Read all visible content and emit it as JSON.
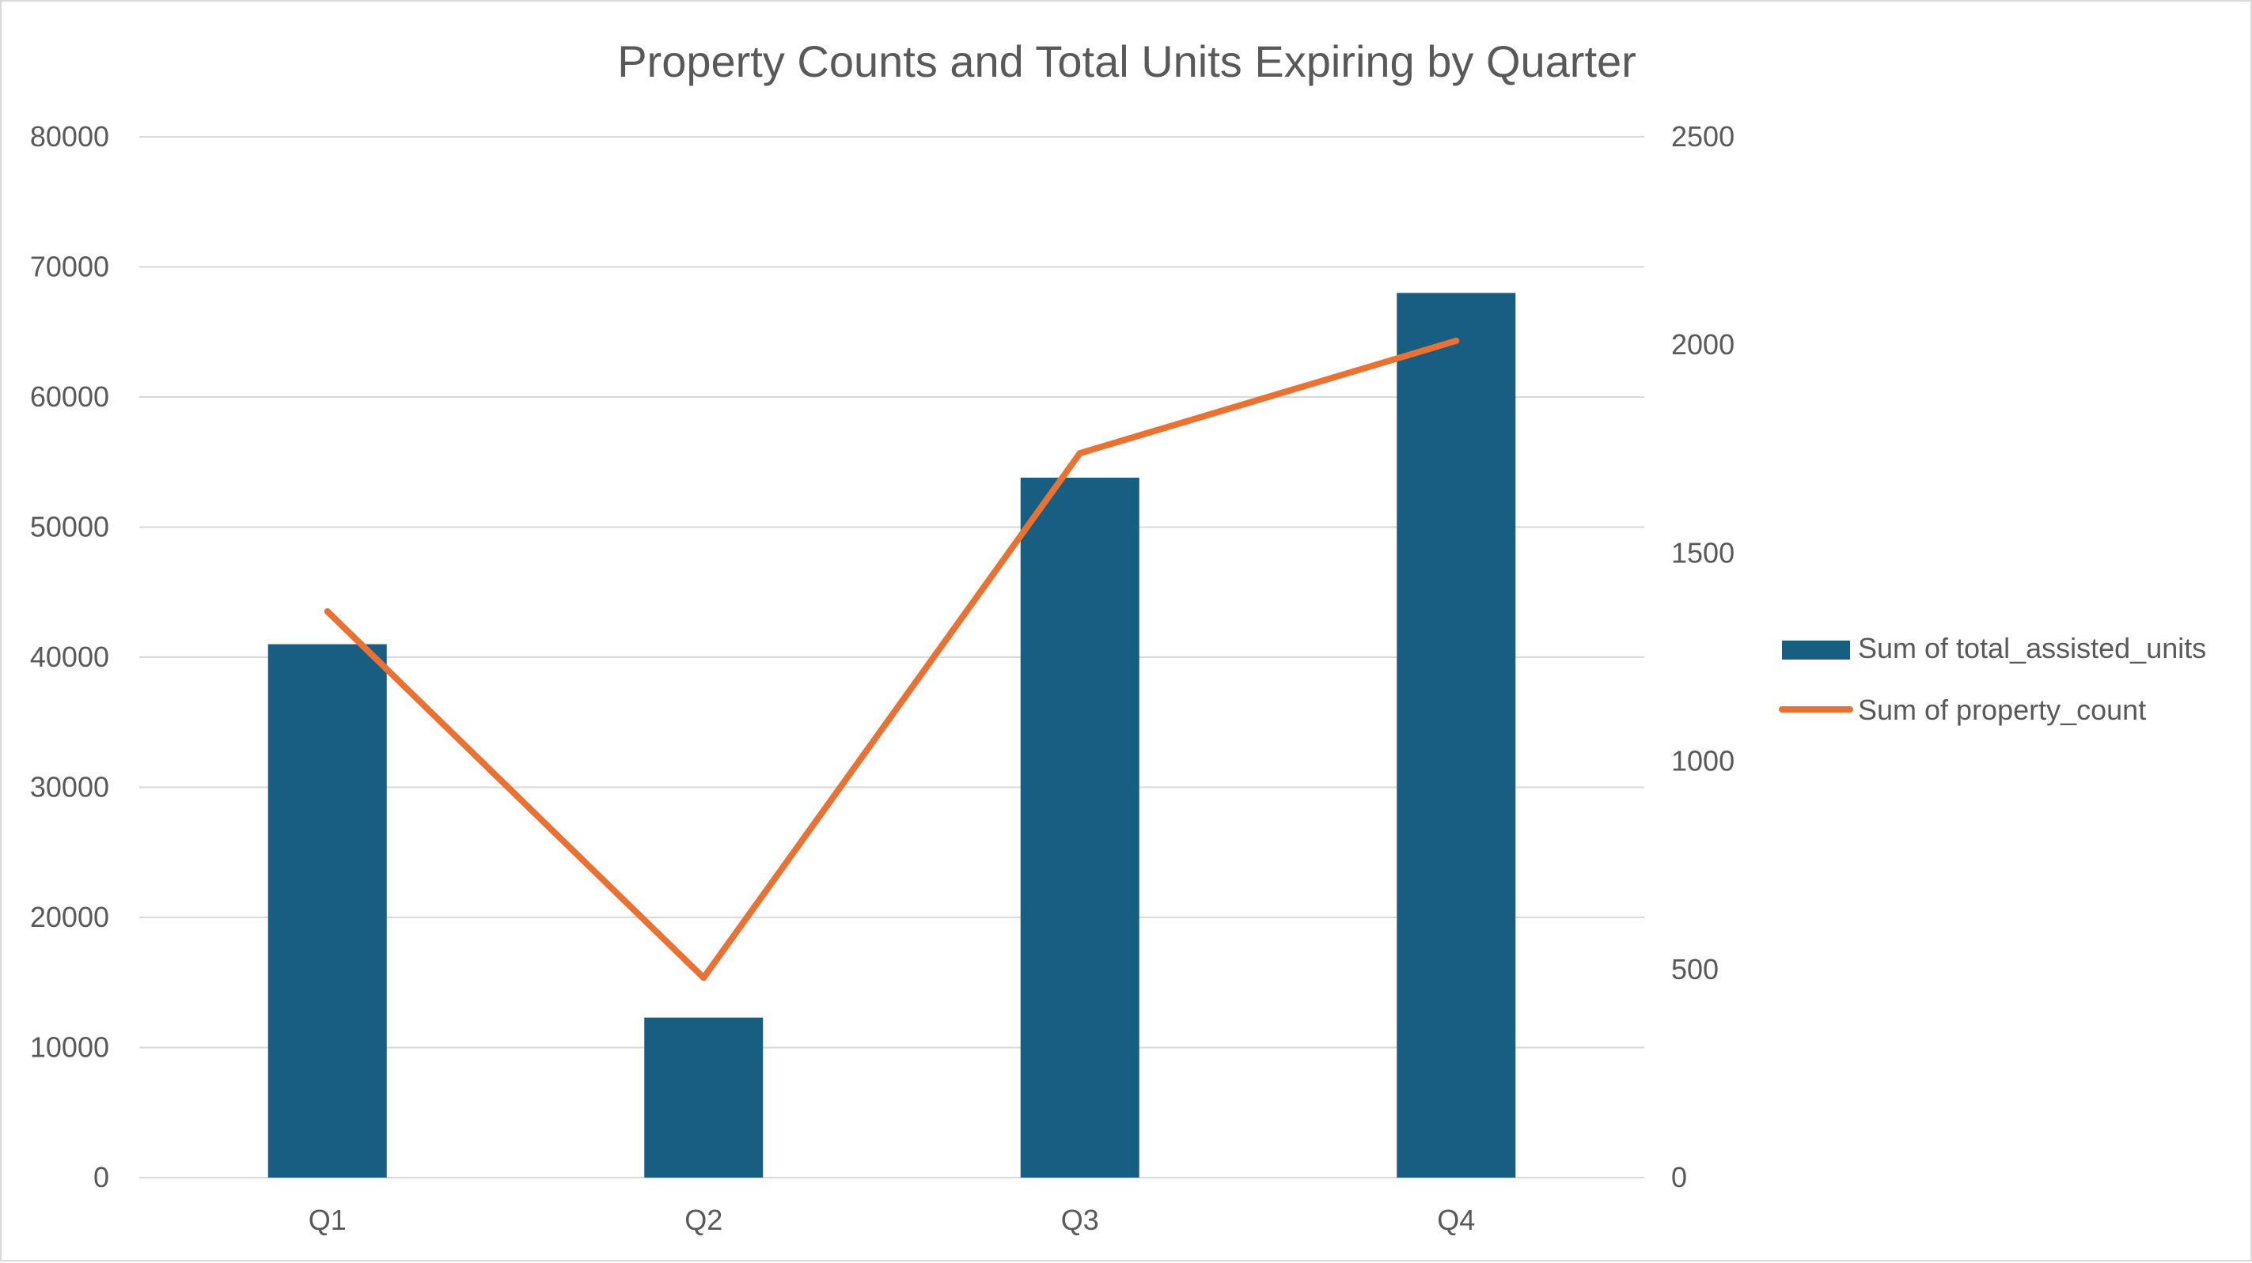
{
  "chart_data": {
    "type": "bar",
    "title": "Property Counts and Total Units Expiring by Quarter",
    "categories": [
      "Q1",
      "Q2",
      "Q3",
      "Q4"
    ],
    "series": [
      {
        "name": "Sum of total_assisted_units",
        "type": "bar",
        "axis": "left",
        "color": "#175e82",
        "values": [
          41000,
          12300,
          53800,
          68000
        ]
      },
      {
        "name": "Sum of property_count",
        "type": "line",
        "axis": "right",
        "color": "#e97132",
        "values": [
          1360,
          480,
          1740,
          2010
        ]
      }
    ],
    "y_left": {
      "min": 0,
      "max": 80000,
      "ticks": [
        "0",
        "10000",
        "20000",
        "30000",
        "40000",
        "50000",
        "60000",
        "70000",
        "80000"
      ]
    },
    "y_right": {
      "min": 0,
      "max": 2500,
      "ticks": [
        "0",
        "500",
        "1000",
        "1500",
        "2000",
        "2500"
      ]
    },
    "grid": true,
    "legend_position": "right"
  }
}
